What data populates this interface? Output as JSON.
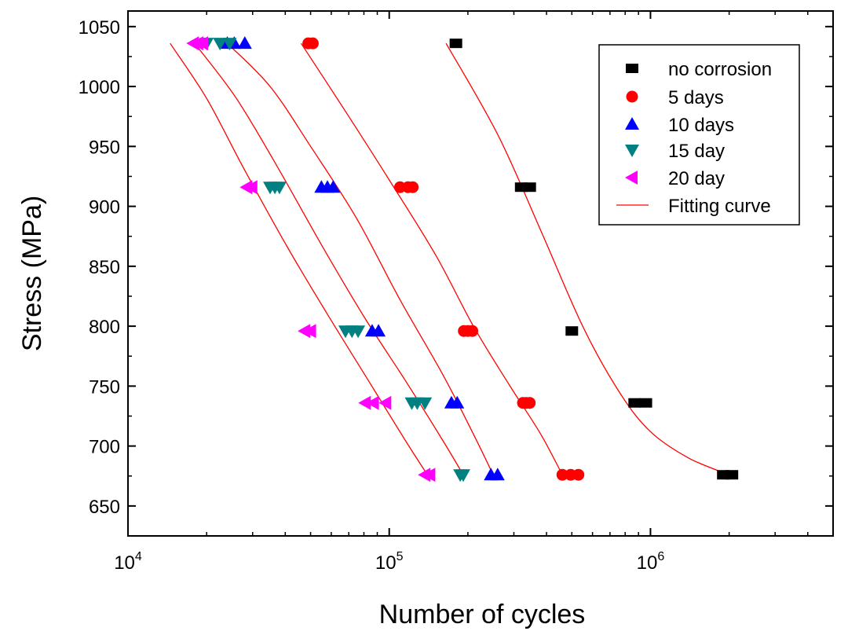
{
  "chart_data": {
    "type": "scatter",
    "title": "",
    "xlabel": "Number of cycles",
    "ylabel": "Stress (MPa)",
    "xscale": "log",
    "xlim": [
      10000,
      5000000
    ],
    "ylim": [
      625,
      1063
    ],
    "x_ticks": [
      {
        "base": "10",
        "exp": "4",
        "value": 10000
      },
      {
        "base": "10",
        "exp": "5",
        "value": 100000
      },
      {
        "base": "10",
        "exp": "6",
        "value": 1000000
      }
    ],
    "y_ticks": [
      "650",
      "700",
      "750",
      "800",
      "850",
      "900",
      "950",
      "1000",
      "1050"
    ],
    "legend_position": "top-right",
    "series": [
      {
        "name": "no corrosion",
        "marker": "square",
        "color": "#000000",
        "points": [
          [
            180000,
            1036
          ],
          [
            320000,
            916
          ],
          [
            345000,
            916
          ],
          [
            500000,
            796
          ],
          [
            870000,
            736
          ],
          [
            960000,
            736
          ],
          [
            1900000,
            676
          ],
          [
            2050000,
            676
          ]
        ]
      },
      {
        "name": "5 days",
        "marker": "circle",
        "color": "#ff0000",
        "points": [
          [
            49000,
            1036
          ],
          [
            51000,
            1036
          ],
          [
            110000,
            916
          ],
          [
            118000,
            916
          ],
          [
            123000,
            916
          ],
          [
            193000,
            796
          ],
          [
            200000,
            796
          ],
          [
            208000,
            796
          ],
          [
            325000,
            736
          ],
          [
            335000,
            736
          ],
          [
            345000,
            736
          ],
          [
            460000,
            676
          ],
          [
            495000,
            676
          ],
          [
            530000,
            676
          ]
        ]
      },
      {
        "name": "10 days",
        "marker": "triangle-up",
        "color": "#0000ff",
        "points": [
          [
            24000,
            1036
          ],
          [
            25500,
            1036
          ],
          [
            28000,
            1036
          ],
          [
            55000,
            916
          ],
          [
            58000,
            916
          ],
          [
            61000,
            916
          ],
          [
            86000,
            796
          ],
          [
            91000,
            796
          ],
          [
            173000,
            736
          ],
          [
            182000,
            736
          ],
          [
            245000,
            676
          ],
          [
            260000,
            676
          ]
        ]
      },
      {
        "name": "15 day",
        "marker": "triangle-down",
        "color": "#008080",
        "points": [
          [
            20000,
            1036
          ],
          [
            22500,
            1036
          ],
          [
            24500,
            1036
          ],
          [
            35000,
            916
          ],
          [
            36500,
            916
          ],
          [
            38000,
            916
          ],
          [
            68000,
            796
          ],
          [
            72000,
            796
          ],
          [
            76000,
            796
          ],
          [
            122000,
            736
          ],
          [
            128000,
            736
          ],
          [
            137000,
            736
          ],
          [
            187000,
            676
          ],
          [
            192000,
            676
          ]
        ]
      },
      {
        "name": "20 day",
        "marker": "triangle-left",
        "color": "#ff00ff",
        "points": [
          [
            17800,
            1036
          ],
          [
            18500,
            1036
          ],
          [
            19300,
            1036
          ],
          [
            28500,
            916
          ],
          [
            29800,
            916
          ],
          [
            47500,
            796
          ],
          [
            50000,
            796
          ],
          [
            81000,
            736
          ],
          [
            87000,
            736
          ],
          [
            97000,
            736
          ],
          [
            137000,
            676
          ],
          [
            143000,
            676
          ]
        ]
      }
    ],
    "fitting_curves": {
      "name": "Fitting curve",
      "color": "#ff0000",
      "curves": [
        {
          "for": "no corrosion",
          "points": [
            [
              165000,
              1036
            ],
            [
              260000,
              960
            ],
            [
              380000,
              880
            ],
            [
              550000,
              800
            ],
            [
              760000,
              745
            ],
            [
              1000000,
              712
            ],
            [
              1400000,
              690
            ],
            [
              2000000,
              676
            ]
          ]
        },
        {
          "for": "5 days",
          "points": [
            [
              46000,
              1036
            ],
            [
              70000,
              975
            ],
            [
              100000,
              922
            ],
            [
              150000,
              860
            ],
            [
              210000,
              800
            ],
            [
              290000,
              750
            ],
            [
              380000,
              710
            ],
            [
              460000,
              676
            ]
          ]
        },
        {
          "for": "10 days",
          "points": [
            [
              24000,
              1036
            ],
            [
              35000,
              1000
            ],
            [
              50000,
              950
            ],
            [
              75000,
              890
            ],
            [
              110000,
              822
            ],
            [
              160000,
              760
            ],
            [
              210000,
              710
            ],
            [
              250000,
              676
            ]
          ]
        },
        {
          "for": "15 day",
          "points": [
            [
              18000,
              1036
            ],
            [
              26000,
              990
            ],
            [
              38000,
              930
            ],
            [
              55000,
              868
            ],
            [
              80000,
              808
            ],
            [
              115000,
              755
            ],
            [
              160000,
              705
            ],
            [
              192000,
              676
            ]
          ]
        },
        {
          "for": "20 day",
          "points": [
            [
              14500,
              1036
            ],
            [
              20000,
              990
            ],
            [
              28000,
              930
            ],
            [
              41000,
              865
            ],
            [
              58000,
              810
            ],
            [
              83000,
              755
            ],
            [
              115000,
              705
            ],
            [
              140000,
              676
            ]
          ]
        }
      ]
    }
  }
}
